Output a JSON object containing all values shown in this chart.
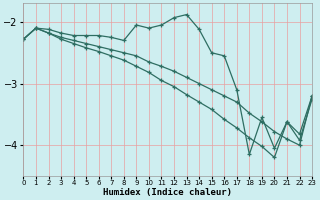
{
  "xlabel": "Humidex (Indice chaleur)",
  "bg_color": "#ceeef0",
  "grid_color": "#b8dde0",
  "line_color": "#2e6e62",
  "xlim": [
    0,
    23
  ],
  "ylim": [
    -4.5,
    -1.7
  ],
  "yticks": [
    -4,
    -3,
    -2
  ],
  "xticks": [
    0,
    1,
    2,
    3,
    4,
    5,
    6,
    7,
    8,
    9,
    10,
    11,
    12,
    13,
    14,
    15,
    16,
    17,
    18,
    19,
    20,
    21,
    22,
    23
  ],
  "series": [
    {
      "x": [
        0,
        1,
        2,
        3,
        4,
        5,
        6,
        7,
        8,
        9,
        10,
        11,
        12,
        13,
        14,
        15,
        16,
        17,
        18,
        19,
        20,
        21,
        22,
        23
      ],
      "y": [
        -2.28,
        -2.1,
        -2.12,
        -2.18,
        -2.22,
        -2.22,
        -2.22,
        -2.25,
        -2.3,
        -2.05,
        -2.1,
        -2.05,
        -1.93,
        -1.88,
        -2.12,
        -2.5,
        -2.55,
        -3.1,
        -4.15,
        -3.55,
        -4.05,
        -3.62,
        -3.82,
        -3.2
      ]
    },
    {
      "x": [
        0,
        1,
        2,
        3,
        4,
        5,
        6,
        7,
        8,
        9,
        10,
        11,
        12,
        13,
        14,
        15,
        16,
        17,
        18,
        19,
        20,
        21,
        22,
        23
      ],
      "y": [
        -2.28,
        -2.1,
        -2.18,
        -2.25,
        -2.3,
        -2.35,
        -2.4,
        -2.45,
        -2.5,
        -2.55,
        -2.65,
        -2.72,
        -2.8,
        -2.9,
        -3.0,
        -3.1,
        -3.2,
        -3.3,
        -3.48,
        -3.62,
        -3.78,
        -3.9,
        -4.0,
        -3.2
      ]
    },
    {
      "x": [
        0,
        1,
        2,
        3,
        4,
        5,
        6,
        7,
        8,
        9,
        10,
        11,
        12,
        13,
        14,
        15,
        16,
        17,
        18,
        19,
        20,
        21,
        22,
        23
      ],
      "y": [
        -2.28,
        -2.1,
        -2.18,
        -2.28,
        -2.35,
        -2.42,
        -2.48,
        -2.55,
        -2.62,
        -2.72,
        -2.82,
        -2.95,
        -3.05,
        -3.18,
        -3.3,
        -3.42,
        -3.58,
        -3.72,
        -3.88,
        -4.02,
        -4.2,
        -3.62,
        -3.92,
        -3.25
      ]
    }
  ]
}
